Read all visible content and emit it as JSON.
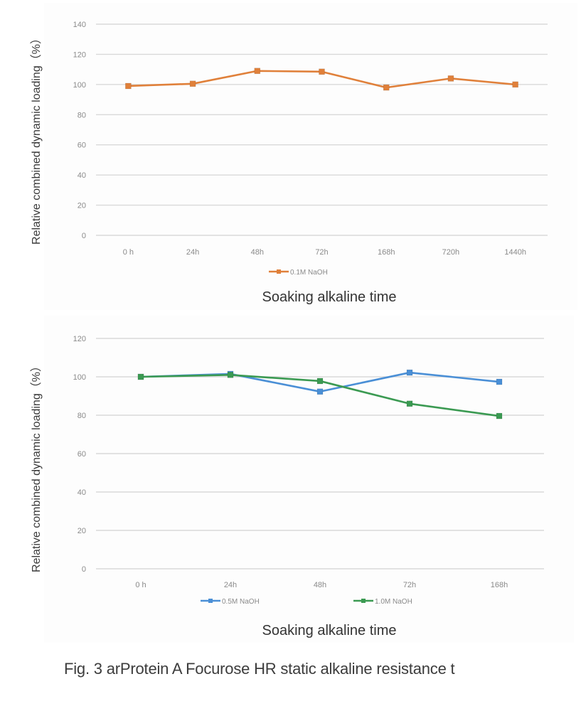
{
  "chart_data": [
    {
      "type": "line",
      "title": "",
      "xlabel": "Soaking alkaline time",
      "ylabel": "Relative combined dynamic loading（%）",
      "categories": [
        "0 h",
        "24h",
        "48h",
        "72h",
        "168h",
        "720h",
        "1440h"
      ],
      "ylim": [
        0,
        140
      ],
      "yticks": [
        0,
        20,
        40,
        60,
        80,
        100,
        120,
        140
      ],
      "grid": true,
      "legend": "bottom",
      "series": [
        {
          "name": "0.1M NaOH",
          "color": "#e0803a",
          "marker": "square",
          "values": [
            99,
            100.5,
            109,
            108.5,
            98,
            104,
            100
          ]
        }
      ]
    },
    {
      "type": "line",
      "title": "",
      "xlabel": "Soaking alkaline time",
      "ylabel": "Relative combined dynamic loading（%）",
      "categories": [
        "0 h",
        "24h",
        "48h",
        "72h",
        "168h"
      ],
      "ylim": [
        0,
        120
      ],
      "yticks": [
        0,
        20,
        40,
        60,
        80,
        100,
        120
      ],
      "grid": true,
      "legend": "bottom",
      "series": [
        {
          "name": "0.5M NaOH",
          "color": "#4a8fd6",
          "marker": "square",
          "values": [
            100,
            101.5,
            92.3,
            102.2,
            97.4
          ]
        },
        {
          "name": "1.0M NaOH",
          "color": "#3b9a52",
          "marker": "square",
          "values": [
            100,
            101,
            97.8,
            86,
            79.6
          ]
        }
      ]
    }
  ],
  "caption": "Fig. 3 arProtein A Focurose HR static alkaline resistance t"
}
